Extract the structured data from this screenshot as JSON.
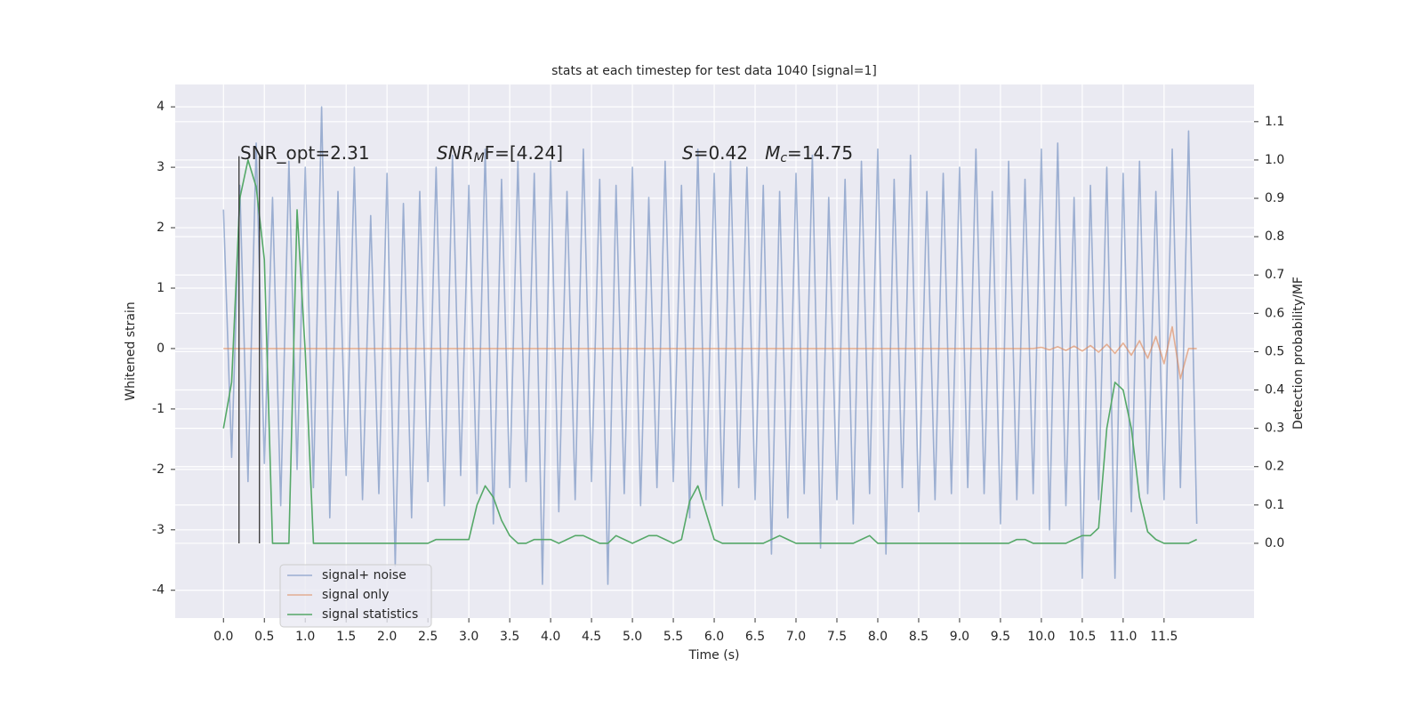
{
  "chart_data": {
    "type": "line",
    "title": "stats at each timestep for test data 1040 [signal=1]",
    "xlabel": "Time (s)",
    "ylabel": "Whitened strain",
    "y2label": "Detection probability/MF",
    "xlim": [
      -0.59,
      12.6
    ],
    "ylim": [
      -4.46,
      4.37
    ],
    "y2lim": [
      -0.195,
      1.197
    ],
    "xticks": [
      {
        "value": 0,
        "label": "0.0"
      },
      0.5,
      {
        "value": 1,
        "label": "1.0"
      },
      1.5,
      {
        "value": 2,
        "label": "2.0"
      },
      2.5,
      {
        "value": 3,
        "label": "3.0"
      },
      3.5,
      {
        "value": 4,
        "label": "4.0"
      },
      4.5,
      {
        "value": 5,
        "label": "5.0"
      },
      5.5,
      {
        "value": 6,
        "label": "6.0"
      },
      6.5,
      {
        "value": 7,
        "label": "7.0"
      },
      7.5,
      {
        "value": 8,
        "label": "8.0"
      },
      8.5,
      {
        "value": 9,
        "label": "9.0"
      },
      9.5,
      {
        "value": 10,
        "label": "10.0"
      },
      10.5,
      {
        "value": 11,
        "label": "11.0"
      },
      11.5
    ],
    "yticks": [
      -4,
      -3,
      -2,
      -1,
      0,
      1,
      2,
      3,
      4
    ],
    "y2ticks": [
      {
        "value": 0,
        "label": "0.0"
      },
      0.1,
      0.2,
      0.3,
      0.4,
      0.5,
      0.6,
      0.7,
      0.8,
      0.9,
      {
        "value": 1,
        "label": "1.0"
      },
      1.1
    ],
    "grid": true,
    "legend_loc": "lower left",
    "background": "#eaeaf2",
    "annotations": [
      [
        {
          "t": "SNR_opt=2.31"
        }
      ],
      [
        {
          "t": "SNR",
          "italic": true
        },
        {
          "t": "M",
          "italic": true,
          "sub": true
        },
        {
          "t": "F=[4.24]"
        }
      ],
      [
        {
          "t": "S",
          "italic": true
        },
        {
          "t": "=0.42   "
        },
        {
          "t": "M",
          "italic": true
        },
        {
          "t": "c",
          "italic": true,
          "sub": true
        },
        {
          "t": "=14.75"
        }
      ]
    ],
    "vlines": {
      "x": [
        0.19,
        0.44
      ],
      "y": [
        0,
        1.01
      ],
      "color": "#333333"
    },
    "x": [
      0,
      0.1,
      0.2,
      0.3,
      0.4,
      0.5,
      0.6,
      0.7,
      0.8,
      0.9,
      1,
      1.1,
      1.2,
      1.3,
      1.4,
      1.5,
      1.6,
      1.7,
      1.8,
      1.9,
      2,
      2.1,
      2.2,
      2.3,
      2.4,
      2.5,
      2.6,
      2.7,
      2.8,
      2.9,
      3,
      3.1,
      3.2,
      3.3,
      3.4,
      3.5,
      3.6,
      3.7,
      3.8,
      3.9,
      4,
      4.1,
      4.2,
      4.3,
      4.4,
      4.5,
      4.6,
      4.7,
      4.8,
      4.9,
      5,
      5.1,
      5.2,
      5.3,
      5.4,
      5.5,
      5.6,
      5.7,
      5.8,
      5.9,
      6,
      6.1,
      6.2,
      6.3,
      6.4,
      6.5,
      6.6,
      6.7,
      6.8,
      6.9,
      7,
      7.1,
      7.2,
      7.3,
      7.4,
      7.5,
      7.6,
      7.7,
      7.8,
      7.9,
      8,
      8.1,
      8.2,
      8.3,
      8.4,
      8.5,
      8.6,
      8.7,
      8.8,
      8.9,
      9,
      9.1,
      9.2,
      9.3,
      9.4,
      9.5,
      9.6,
      9.7,
      9.8,
      9.9,
      10,
      10.1,
      10.2,
      10.3,
      10.4,
      10.5,
      10.6,
      10.7,
      10.8,
      10.9,
      11,
      11.1,
      11.2,
      11.3,
      11.4,
      11.5,
      11.6,
      11.7,
      11.8,
      11.9
    ],
    "series": [
      {
        "name": "signal+ noise",
        "color": "#4c72b0",
        "opacity": 0.5,
        "axis": "y",
        "values": [
          2.3,
          -1.8,
          2.7,
          -2.2,
          3.4,
          -1.9,
          2.5,
          -2.6,
          3.1,
          -2.0,
          3.0,
          -2.3,
          4.0,
          -2.8,
          2.6,
          -2.1,
          3.0,
          -2.5,
          2.2,
          -2.4,
          2.9,
          -3.6,
          2.4,
          -2.8,
          2.6,
          -2.2,
          3.0,
          -2.6,
          3.2,
          -2.1,
          2.7,
          -2.4,
          3.3,
          -2.9,
          2.8,
          -2.3,
          3.1,
          -2.2,
          2.9,
          -3.9,
          3.1,
          -2.7,
          2.6,
          -2.5,
          3.3,
          -2.2,
          2.8,
          -3.9,
          2.7,
          -2.4,
          3.0,
          -2.6,
          2.5,
          -2.3,
          3.1,
          -2.2,
          2.7,
          -2.8,
          3.3,
          -2.5,
          2.9,
          -2.6,
          3.1,
          -2.3,
          3.0,
          -2.5,
          2.7,
          -3.4,
          2.6,
          -2.8,
          2.9,
          -2.4,
          3.2,
          -3.3,
          2.5,
          -2.5,
          2.8,
          -2.9,
          3.1,
          -2.4,
          3.3,
          -3.4,
          2.8,
          -2.3,
          3.2,
          -2.7,
          2.6,
          -2.5,
          2.9,
          -2.4,
          3.0,
          -2.3,
          3.3,
          -2.4,
          2.6,
          -2.9,
          3.1,
          -2.5,
          2.8,
          -2.4,
          3.3,
          -3.0,
          3.4,
          -2.6,
          2.5,
          -3.8,
          2.7,
          -2.5,
          3.0,
          -3.8,
          2.9,
          -2.7,
          3.1,
          -2.4,
          2.6,
          -2.5,
          3.3,
          -2.3,
          3.6,
          -2.9
        ]
      },
      {
        "name": "signal only",
        "color": "#dd8452",
        "opacity": 0.6,
        "axis": "y",
        "values": [
          0,
          0,
          0,
          0,
          0,
          0,
          0,
          0,
          0,
          0,
          0,
          0,
          0,
          0,
          0,
          0,
          0,
          0,
          0,
          0,
          0,
          0,
          0,
          0,
          0,
          0,
          0,
          0,
          0,
          0,
          0,
          0,
          0,
          0,
          0,
          0,
          0,
          0,
          0,
          0,
          0,
          0,
          0,
          0,
          0,
          0,
          0,
          0,
          0,
          0,
          0,
          0,
          0,
          0,
          0,
          0,
          0,
          0,
          0,
          0,
          0,
          0,
          0,
          0,
          0,
          0,
          0,
          0,
          0,
          0,
          0,
          0,
          0,
          0,
          0,
          0,
          0,
          0,
          0,
          0,
          0,
          0,
          0,
          0,
          0,
          0,
          0,
          0,
          0,
          0,
          0,
          0,
          0,
          0,
          0,
          0,
          0,
          0,
          0,
          0,
          0.02,
          -0.02,
          0.03,
          -0.03,
          0.04,
          -0.04,
          0.05,
          -0.06,
          0.07,
          -0.08,
          0.09,
          -0.11,
          0.13,
          -0.16,
          0.2,
          -0.25,
          0.36,
          -0.5,
          0,
          0
        ]
      },
      {
        "name": "signal statistics",
        "color": "#55a868",
        "opacity": 1,
        "axis": "y2",
        "values": [
          0.3,
          0.42,
          0.9,
          1.0,
          0.93,
          0.74,
          0,
          0,
          0,
          0.87,
          0.5,
          0,
          0,
          0,
          0,
          0,
          0,
          0,
          0,
          0,
          0,
          0,
          0,
          0,
          0,
          0,
          0.01,
          0.01,
          0.01,
          0.01,
          0.01,
          0.1,
          0.15,
          0.12,
          0.06,
          0.02,
          0,
          0,
          0.01,
          0.01,
          0.01,
          0,
          0.01,
          0.02,
          0.02,
          0.01,
          0,
          0,
          0.02,
          0.01,
          0,
          0.01,
          0.02,
          0.02,
          0.01,
          0,
          0.01,
          0.11,
          0.15,
          0.08,
          0.01,
          0,
          0,
          0,
          0,
          0,
          0,
          0.01,
          0.02,
          0.01,
          0,
          0,
          0,
          0,
          0,
          0,
          0,
          0,
          0.01,
          0.02,
          0,
          0,
          0,
          0,
          0,
          0,
          0,
          0,
          0,
          0,
          0,
          0,
          0,
          0,
          0,
          0,
          0,
          0.01,
          0.01,
          0,
          0,
          0,
          0,
          0,
          0.01,
          0.02,
          0.02,
          0.04,
          0.3,
          0.42,
          0.4,
          0.3,
          0.12,
          0.03,
          0.01,
          0,
          0,
          0,
          0,
          0.01
        ]
      }
    ]
  }
}
